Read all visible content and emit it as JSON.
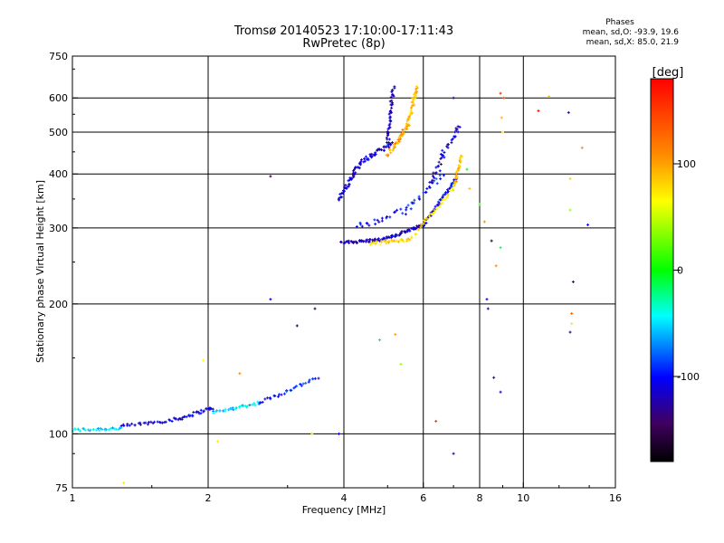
{
  "chart_data": {
    "type": "scatter",
    "title": "Tromsø 20140523 17:10:00-17:11:43",
    "subtitle": "RwPretec (8p)",
    "stats_heading": "Phases",
    "stats_o": "mean, sd,O: -93.9, 19.6",
    "stats_x": "mean, sd,X: 85.0, 21.9",
    "xlabel": "Frequency [MHz]",
    "ylabel": "Stationary phase Virtual Height [km]",
    "x_scale": "log",
    "y_scale": "log",
    "xlim": [
      1,
      16
    ],
    "ylim": [
      75,
      750
    ],
    "x_ticks": [
      1,
      2,
      4,
      6,
      8,
      10,
      16
    ],
    "x_tick_labels": [
      "1",
      "2",
      "4",
      "6",
      "8",
      "10",
      "16"
    ],
    "x_grid": [
      2,
      4,
      6,
      8,
      10
    ],
    "y_ticks": [
      75,
      100,
      200,
      300,
      400,
      500,
      600,
      750
    ],
    "y_tick_labels": [
      "75",
      "100",
      "200",
      "300",
      "400",
      "500",
      "600",
      "750"
    ],
    "y_grid": [
      100,
      200,
      300,
      400,
      500,
      600
    ],
    "grid": true,
    "colorbar": {
      "label": "[deg]",
      "range": [
        -180,
        180
      ],
      "ticks": [
        100,
        0,
        -100
      ],
      "tick_labels": [
        "100",
        "0",
        "-100"
      ]
    },
    "traces": [
      {
        "segments": [
          {
            "f0": 1.0,
            "f1": 1.28,
            "h0": 102,
            "h1": 103,
            "phase": -55
          },
          {
            "f0": 1.28,
            "f1": 1.7,
            "h0": 104,
            "h1": 108,
            "phase": -115
          },
          {
            "f0": 1.7,
            "f1": 2.05,
            "h0": 108,
            "h1": 115,
            "phase": -110
          },
          {
            "f0": 2.05,
            "f1": 2.6,
            "h0": 112,
            "h1": 118,
            "phase": -60
          },
          {
            "f0": 2.6,
            "f1": 3.5,
            "h0": 118,
            "h1": 135,
            "phase": -95
          }
        ],
        "n": 150,
        "spread": 0.012
      },
      {
        "segments": [
          {
            "f0": 3.95,
            "f1": 4.9,
            "h0": 277,
            "h1": 282,
            "phase": -120
          },
          {
            "f0": 4.9,
            "f1": 6.0,
            "h0": 282,
            "h1": 305,
            "phase": -120
          },
          {
            "f0": 6.0,
            "f1": 7.1,
            "h0": 305,
            "h1": 390,
            "phase": -105
          }
        ],
        "n": 140,
        "spread": 0.01
      },
      {
        "segments": [
          {
            "f0": 4.6,
            "f1": 5.6,
            "h0": 276,
            "h1": 282,
            "phase": 120
          },
          {
            "f0": 5.6,
            "f1": 7.0,
            "h0": 282,
            "h1": 370,
            "phase": 110
          },
          {
            "f0": 7.0,
            "f1": 7.3,
            "h0": 370,
            "h1": 440,
            "phase": 130
          }
        ],
        "n": 90,
        "spread": 0.012
      },
      {
        "segments": [
          {
            "f0": 3.9,
            "f1": 4.35,
            "h0": 350,
            "h1": 425,
            "phase": -115
          },
          {
            "f0": 4.35,
            "f1": 5.1,
            "h0": 425,
            "h1": 470,
            "phase": -115
          },
          {
            "f0": 5.0,
            "f1": 5.15,
            "h0": 470,
            "h1": 640,
            "phase": -120
          }
        ],
        "n": 130,
        "spread": 0.015
      },
      {
        "segments": [
          {
            "f0": 5.0,
            "f1": 5.55,
            "h0": 440,
            "h1": 520,
            "phase": 140
          },
          {
            "f0": 5.55,
            "f1": 5.8,
            "h0": 520,
            "h1": 640,
            "phase": 130
          }
        ],
        "n": 70,
        "spread": 0.015
      },
      {
        "segments": [
          {
            "f0": 4.3,
            "f1": 5.5,
            "h0": 300,
            "h1": 330,
            "phase": -105
          },
          {
            "f0": 5.5,
            "f1": 6.6,
            "h0": 330,
            "h1": 400,
            "phase": -100
          }
        ],
        "n": 45,
        "spread": 0.025
      },
      {
        "segments": [
          {
            "f0": 6.2,
            "f1": 7.2,
            "h0": 380,
            "h1": 520,
            "phase": -115
          }
        ],
        "n": 40,
        "spread": 0.03
      }
    ],
    "points": [
      {
        "f": 2.75,
        "h": 395,
        "phase": -150
      },
      {
        "f": 2.75,
        "h": 205,
        "phase": -110
      },
      {
        "f": 3.15,
        "h": 178,
        "phase": -160
      },
      {
        "f": 3.45,
        "h": 195,
        "phase": -160
      },
      {
        "f": 3.4,
        "h": 100,
        "phase": 110
      },
      {
        "f": 3.9,
        "h": 100,
        "phase": -100
      },
      {
        "f": 4.8,
        "h": 165,
        "phase": -60
      },
      {
        "f": 5.2,
        "h": 170,
        "phase": 140
      },
      {
        "f": 5.35,
        "h": 145,
        "phase": 60
      },
      {
        "f": 6.4,
        "h": 107,
        "phase": 170
      },
      {
        "f": 7.0,
        "h": 90,
        "phase": -120
      },
      {
        "f": 7.0,
        "h": 600,
        "phase": -130
      },
      {
        "f": 7.5,
        "h": 410,
        "phase": 0
      },
      {
        "f": 7.6,
        "h": 370,
        "phase": 130
      },
      {
        "f": 8.0,
        "h": 340,
        "phase": 20
      },
      {
        "f": 8.2,
        "h": 310,
        "phase": 150
      },
      {
        "f": 8.3,
        "h": 205,
        "phase": -110
      },
      {
        "f": 8.35,
        "h": 195,
        "phase": -120
      },
      {
        "f": 8.5,
        "h": 280,
        "phase": -160
      },
      {
        "f": 8.6,
        "h": 135,
        "phase": -130
      },
      {
        "f": 8.7,
        "h": 245,
        "phase": 150
      },
      {
        "f": 8.9,
        "h": 270,
        "phase": -20
      },
      {
        "f": 8.9,
        "h": 125,
        "phase": -110
      },
      {
        "f": 8.9,
        "h": 615,
        "phase": 170
      },
      {
        "f": 8.95,
        "h": 540,
        "phase": 130
      },
      {
        "f": 9.0,
        "h": 500,
        "phase": 110
      },
      {
        "f": 9.05,
        "h": 600,
        "phase": 160
      },
      {
        "f": 10.8,
        "h": 560,
        "phase": 175
      },
      {
        "f": 11.4,
        "h": 605,
        "phase": 125
      },
      {
        "f": 12.6,
        "h": 555,
        "phase": -120
      },
      {
        "f": 12.7,
        "h": 390,
        "phase": 120
      },
      {
        "f": 12.7,
        "h": 330,
        "phase": 60
      },
      {
        "f": 12.8,
        "h": 190,
        "phase": 160
      },
      {
        "f": 12.8,
        "h": 180,
        "phase": 110
      },
      {
        "f": 12.9,
        "h": 225,
        "phase": -120
      },
      {
        "f": 12.7,
        "h": 172,
        "phase": -130
      },
      {
        "f": 13.5,
        "h": 460,
        "phase": 150
      },
      {
        "f": 13.9,
        "h": 305,
        "phase": -100
      },
      {
        "f": 1.3,
        "h": 77,
        "phase": 110
      },
      {
        "f": 1.95,
        "h": 148,
        "phase": 100
      },
      {
        "f": 2.1,
        "h": 96,
        "phase": 110
      },
      {
        "f": 2.35,
        "h": 138,
        "phase": 150
      }
    ]
  }
}
